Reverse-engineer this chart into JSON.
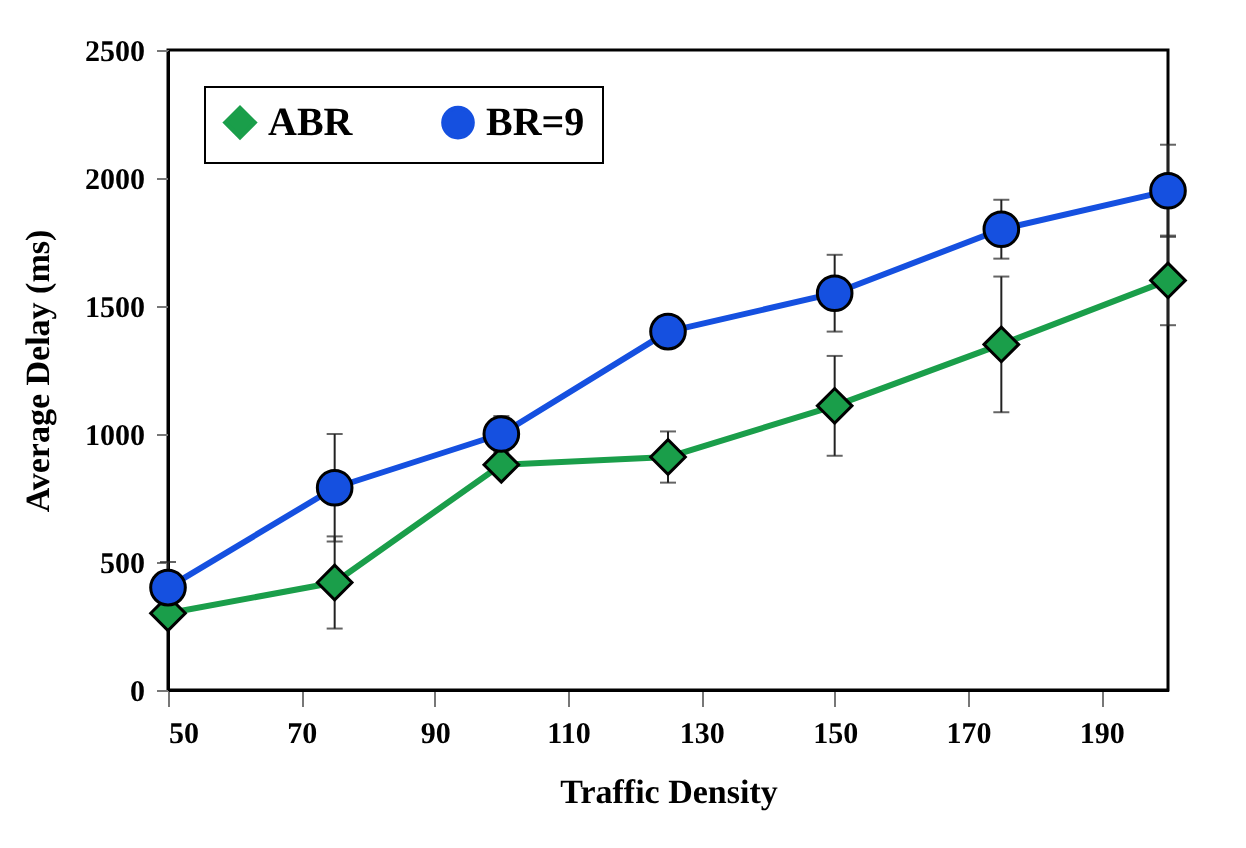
{
  "chart_data": {
    "type": "line",
    "xlabel": "Traffic Density",
    "ylabel": "Average Delay (ms)",
    "x": [
      50,
      75,
      100,
      125,
      150,
      175,
      200
    ],
    "series": [
      {
        "name": "ABR",
        "color": "#1a9e4a",
        "marker": "diamond",
        "values": [
          300,
          420,
          880,
          910,
          1110,
          1350,
          1600
        ],
        "errors": [
          null,
          180,
          30,
          100,
          195,
          265,
          175
        ]
      },
      {
        "name": "BR=9",
        "color": "#1550e0",
        "marker": "circle",
        "values": [
          400,
          790,
          1000,
          1400,
          1550,
          1800,
          1950
        ],
        "errors": [
          100,
          210,
          70,
          50,
          150,
          115,
          180
        ]
      }
    ],
    "xlim": [
      50,
      200
    ],
    "xticks": [
      50,
      70,
      90,
      110,
      130,
      150,
      170,
      190
    ],
    "ylim": [
      0,
      2500
    ],
    "yticks": [
      0,
      500,
      1000,
      1500,
      2000,
      2500
    ],
    "grid": false,
    "legend": "top left",
    "line_style": "solid"
  }
}
